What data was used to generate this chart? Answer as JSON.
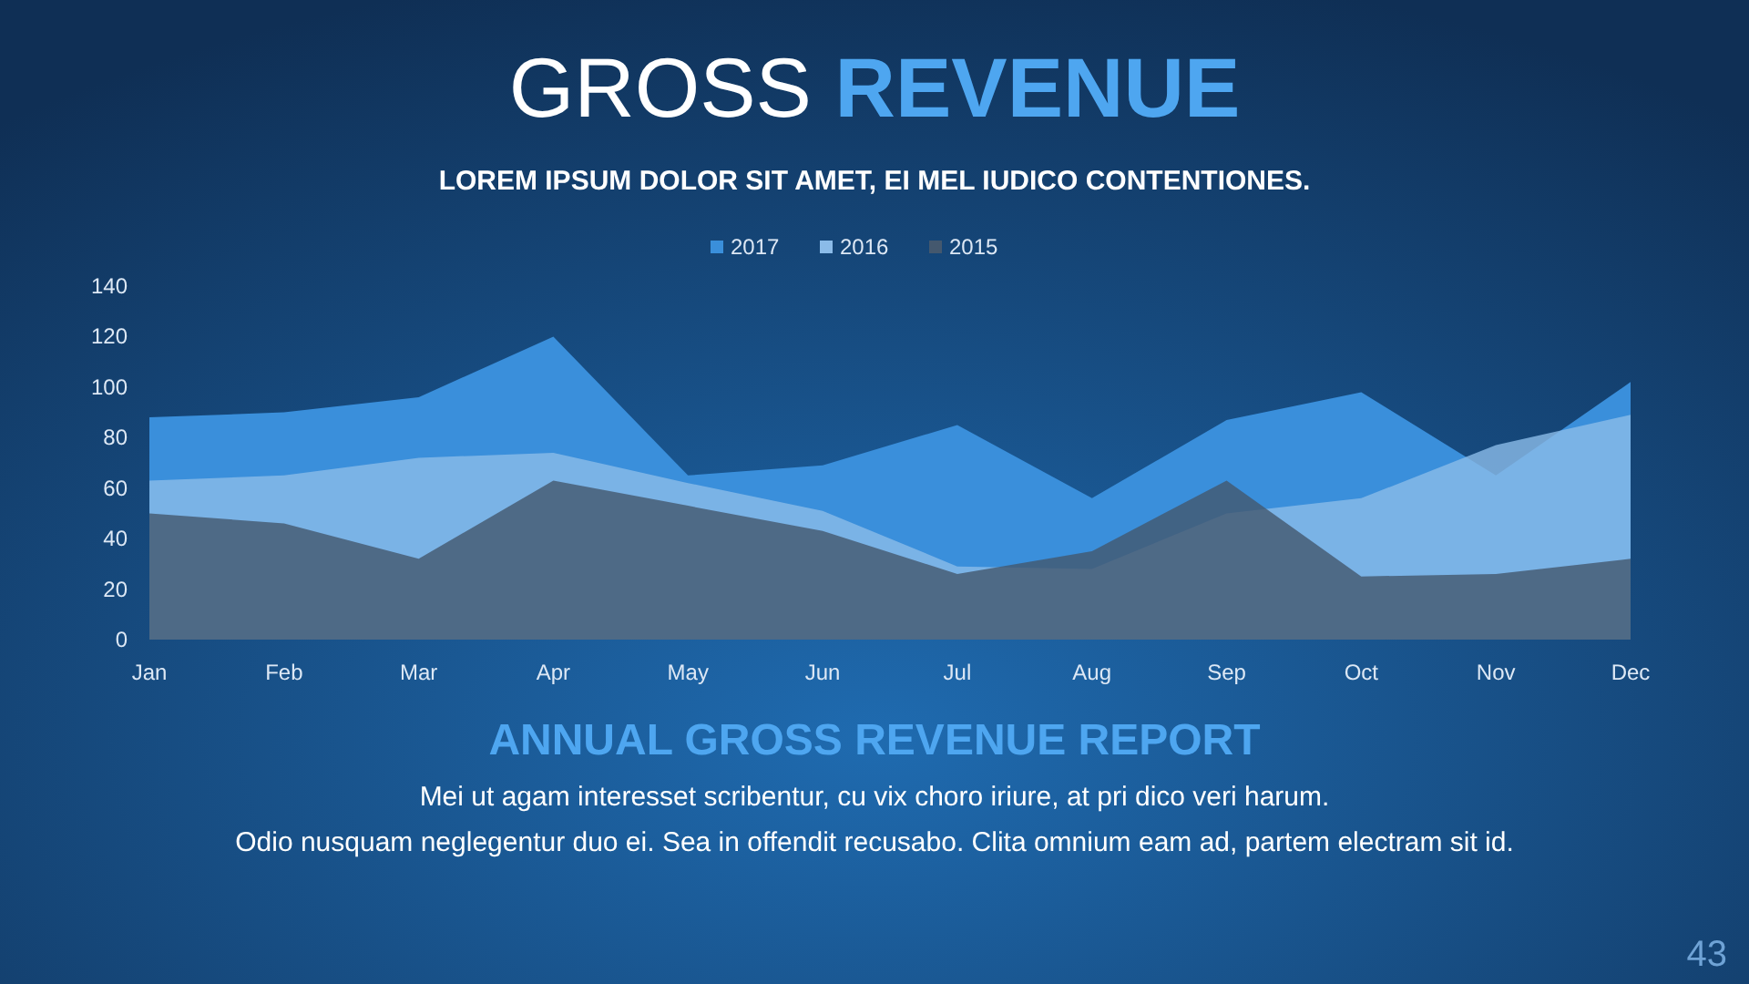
{
  "chart_data": {
    "type": "area",
    "title": "GROSS REVENUE",
    "subtitle": "LOREM IPSUM DOLOR SIT AMET, EI MEL IUDICO CONTENTIONES.",
    "categories": [
      "Jan",
      "Feb",
      "Mar",
      "Apr",
      "May",
      "Jun",
      "Jul",
      "Aug",
      "Sep",
      "Oct",
      "Nov",
      "Dec"
    ],
    "series": [
      {
        "name": "2017",
        "color": "#3a8fdb",
        "values": [
          88,
          90,
          96,
          120,
          65,
          69,
          85,
          56,
          87,
          98,
          65,
          102
        ]
      },
      {
        "name": "2016",
        "color": "#8bbbe8",
        "values": [
          63,
          65,
          72,
          74,
          62,
          51,
          29,
          28,
          50,
          56,
          77,
          89
        ]
      },
      {
        "name": "2015",
        "color": "#44586e",
        "values": [
          50,
          46,
          32,
          63,
          53,
          43,
          26,
          35,
          63,
          25,
          26,
          32
        ]
      }
    ],
    "ylim": [
      0,
      140
    ],
    "yticks": [
      0,
      20,
      40,
      60,
      80,
      100,
      120,
      140
    ],
    "grid": false,
    "legend": "top",
    "annotations": [
      "ANNUAL GROSS REVENUE REPORT",
      "Mei ut agam interesset scribentur, cu vix choro iriure, at pri dico veri harum.",
      "Odio nusquam neglegentur duo ei. Sea in offendit recusabo. Clita omnium eam ad, partem electram sit id.",
      "43"
    ]
  }
}
